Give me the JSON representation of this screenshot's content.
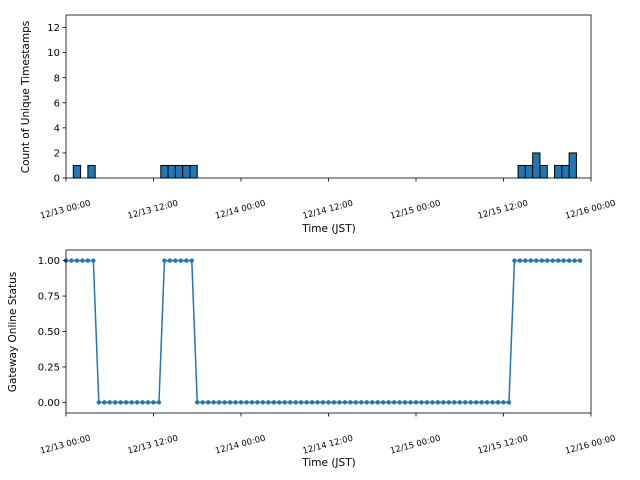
{
  "colors": {
    "series": "#1f77b4",
    "edge": "#000000",
    "background": "#ffffff"
  },
  "chart_data": [
    {
      "type": "bar",
      "title": "",
      "xlabel": "Time (JST)",
      "ylabel": "Count of Unique Timestamps",
      "xlim": [
        0,
        72
      ],
      "ylim": [
        0,
        13
      ],
      "x_ticks": [
        {
          "value": 0,
          "label": "12/13 00:00"
        },
        {
          "value": 12,
          "label": "12/13 12:00"
        },
        {
          "value": 24,
          "label": "12/14 00:00"
        },
        {
          "value": 36,
          "label": "12/14 12:00"
        },
        {
          "value": 48,
          "label": "12/15 00:00"
        },
        {
          "value": 60,
          "label": "12/15 12:00"
        },
        {
          "value": 72,
          "label": "12/16 00:00"
        }
      ],
      "y_ticks": [
        {
          "value": 0,
          "label": "0"
        },
        {
          "value": 2,
          "label": "2"
        },
        {
          "value": 4,
          "label": "4"
        },
        {
          "value": 6,
          "label": "6"
        },
        {
          "value": 8,
          "label": "8"
        },
        {
          "value": 10,
          "label": "10"
        },
        {
          "value": 12,
          "label": "12"
        }
      ],
      "bin_width_hours": 1,
      "bins": [
        {
          "start": 1,
          "count": 1
        },
        {
          "start": 3,
          "count": 1
        },
        {
          "start": 13,
          "count": 1
        },
        {
          "start": 14,
          "count": 1
        },
        {
          "start": 15,
          "count": 1
        },
        {
          "start": 16,
          "count": 1
        },
        {
          "start": 17,
          "count": 1
        },
        {
          "start": 62,
          "count": 1
        },
        {
          "start": 63,
          "count": 1
        },
        {
          "start": 64,
          "count": 2
        },
        {
          "start": 65,
          "count": 1
        },
        {
          "start": 67,
          "count": 1
        },
        {
          "start": 68,
          "count": 1
        },
        {
          "start": 69,
          "count": 2
        }
      ]
    },
    {
      "type": "line",
      "title": "",
      "xlabel": "Time (JST)",
      "ylabel": "Gateway Online Status",
      "xlim": [
        0,
        72
      ],
      "ylim": [
        -0.075,
        1.075
      ],
      "x_ticks": [
        {
          "value": 0,
          "label": "12/13 00:00"
        },
        {
          "value": 12,
          "label": "12/13 12:00"
        },
        {
          "value": 24,
          "label": "12/14 00:00"
        },
        {
          "value": 36,
          "label": "12/14 12:00"
        },
        {
          "value": 48,
          "label": "12/15 00:00"
        },
        {
          "value": 60,
          "label": "12/15 12:00"
        },
        {
          "value": 72,
          "label": "12/16 00:00"
        }
      ],
      "y_ticks": [
        {
          "value": 0,
          "label": "0.00"
        },
        {
          "value": 0.25,
          "label": "0.25"
        },
        {
          "value": 0.5,
          "label": "0.50"
        },
        {
          "value": 0.75,
          "label": "0.75"
        },
        {
          "value": 1,
          "label": "1.00"
        }
      ],
      "series": [
        {
          "name": "Gateway Online Status",
          "points": [
            [
              0,
              1
            ],
            [
              0.75,
              1
            ],
            [
              1.5,
              1
            ],
            [
              2.25,
              1
            ],
            [
              3,
              1
            ],
            [
              3.75,
              1
            ],
            [
              4.5,
              0
            ],
            [
              5.25,
              0
            ],
            [
              6,
              0
            ],
            [
              6.75,
              0
            ],
            [
              7.5,
              0
            ],
            [
              8.25,
              0
            ],
            [
              9,
              0
            ],
            [
              9.75,
              0
            ],
            [
              10.5,
              0
            ],
            [
              11.25,
              0
            ],
            [
              12,
              0
            ],
            [
              12.75,
              0
            ],
            [
              13.5,
              1
            ],
            [
              14.25,
              1
            ],
            [
              15,
              1
            ],
            [
              15.75,
              1
            ],
            [
              16.5,
              1
            ],
            [
              17.25,
              1
            ],
            [
              18,
              0
            ],
            [
              18.75,
              0
            ],
            [
              19.5,
              0
            ],
            [
              20.25,
              0
            ],
            [
              21,
              0
            ],
            [
              21.75,
              0
            ],
            [
              22.5,
              0
            ],
            [
              23.25,
              0
            ],
            [
              24,
              0
            ],
            [
              24.75,
              0
            ],
            [
              25.5,
              0
            ],
            [
              26.25,
              0
            ],
            [
              27,
              0
            ],
            [
              27.75,
              0
            ],
            [
              28.5,
              0
            ],
            [
              29.25,
              0
            ],
            [
              30,
              0
            ],
            [
              30.75,
              0
            ],
            [
              31.5,
              0
            ],
            [
              32.25,
              0
            ],
            [
              33,
              0
            ],
            [
              33.75,
              0
            ],
            [
              34.5,
              0
            ],
            [
              35.25,
              0
            ],
            [
              36,
              0
            ],
            [
              36.75,
              0
            ],
            [
              37.5,
              0
            ],
            [
              38.25,
              0
            ],
            [
              39,
              0
            ],
            [
              39.75,
              0
            ],
            [
              40.5,
              0
            ],
            [
              41.25,
              0
            ],
            [
              42,
              0
            ],
            [
              42.75,
              0
            ],
            [
              43.5,
              0
            ],
            [
              44.25,
              0
            ],
            [
              45,
              0
            ],
            [
              45.75,
              0
            ],
            [
              46.5,
              0
            ],
            [
              47.25,
              0
            ],
            [
              48,
              0
            ],
            [
              48.75,
              0
            ],
            [
              49.5,
              0
            ],
            [
              50.25,
              0
            ],
            [
              51,
              0
            ],
            [
              51.75,
              0
            ],
            [
              52.5,
              0
            ],
            [
              53.25,
              0
            ],
            [
              54,
              0
            ],
            [
              54.75,
              0
            ],
            [
              55.5,
              0
            ],
            [
              56.25,
              0
            ],
            [
              57,
              0
            ],
            [
              57.75,
              0
            ],
            [
              58.5,
              0
            ],
            [
              59.25,
              0
            ],
            [
              60,
              0
            ],
            [
              60.75,
              0
            ],
            [
              61.5,
              1
            ],
            [
              62.25,
              1
            ],
            [
              63,
              1
            ],
            [
              63.75,
              1
            ],
            [
              64.5,
              1
            ],
            [
              65.25,
              1
            ],
            [
              66,
              1
            ],
            [
              66.75,
              1
            ],
            [
              67.5,
              1
            ],
            [
              68.25,
              1
            ],
            [
              69,
              1
            ],
            [
              69.75,
              1
            ],
            [
              70.5,
              1
            ]
          ]
        }
      ]
    }
  ]
}
